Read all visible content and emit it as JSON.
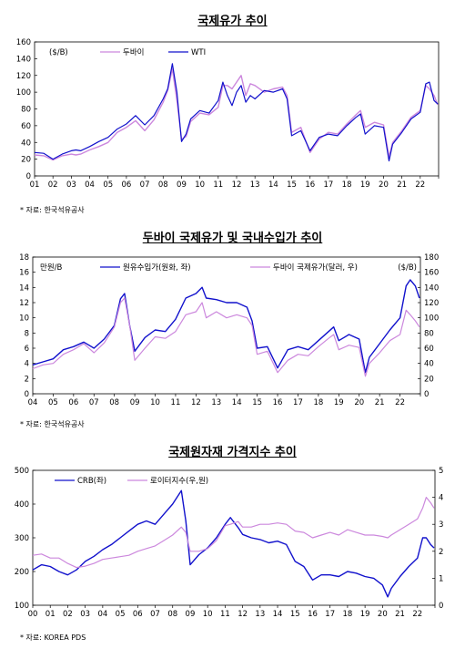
{
  "charts": [
    {
      "title": "국제유가 추이",
      "source": "* 자료: 한국석유공사"
    },
    {
      "title": "두바이 국제유가 및 국내수입가 추이",
      "source": "* 자료: 한국석유공사"
    },
    {
      "title": "국제원자재 가격지수 추이",
      "source": "* 자료: KOREA PDS"
    }
  ],
  "chart_data": [
    {
      "type": "line",
      "title": "국제유가 추이",
      "unit_label": "($/B)",
      "x_tick_labels": [
        "01",
        "02",
        "03",
        "04",
        "05",
        "06",
        "07",
        "08",
        "09",
        "10",
        "11",
        "12",
        "13",
        "14",
        "15",
        "16",
        "17",
        "18",
        "19",
        "20",
        "21",
        "22"
      ],
      "x_range": [
        2001.0,
        2023.0
      ],
      "ylim": [
        0,
        160
      ],
      "y_ticks": [
        0,
        20,
        40,
        60,
        80,
        100,
        120,
        140,
        160
      ],
      "legend_position": "top-left",
      "grid": false,
      "x": [
        2001.0,
        2001.5,
        2002.0,
        2002.5,
        2003.0,
        2003.25,
        2003.5,
        2004.0,
        2004.5,
        2005.0,
        2005.5,
        2006.0,
        2006.5,
        2007.0,
        2007.5,
        2008.0,
        2008.25,
        2008.5,
        2008.75,
        2009.0,
        2009.25,
        2009.5,
        2010.0,
        2010.5,
        2011.0,
        2011.25,
        2011.5,
        2011.75,
        2012.0,
        2012.25,
        2012.5,
        2012.75,
        2013.0,
        2013.5,
        2014.0,
        2014.5,
        2014.75,
        2015.0,
        2015.5,
        2016.0,
        2016.5,
        2017.0,
        2017.5,
        2018.0,
        2018.5,
        2018.75,
        2019.0,
        2019.5,
        2020.0,
        2020.3,
        2020.5,
        2021.0,
        2021.5,
        2022.0,
        2022.3,
        2022.5,
        2022.75,
        2022.95
      ],
      "series": [
        {
          "name": "두바이",
          "color": "#cc88dd",
          "values": [
            25,
            24,
            19,
            24,
            26,
            25,
            26,
            31,
            35,
            40,
            52,
            58,
            66,
            54,
            67,
            88,
            102,
            128,
            90,
            44,
            47,
            65,
            75,
            73,
            82,
            108,
            108,
            104,
            112,
            120,
            96,
            110,
            108,
            100,
            104,
            106,
            96,
            52,
            58,
            28,
            44,
            52,
            50,
            62,
            73,
            78,
            58,
            64,
            61,
            23,
            40,
            54,
            70,
            78,
            108,
            104,
            96,
            85
          ],
          "annotations": []
        },
        {
          "name": "WTI",
          "color": "#1111cc",
          "values": [
            28,
            27,
            20,
            26,
            30,
            31,
            30,
            35,
            41,
            46,
            56,
            62,
            72,
            61,
            72,
            92,
            104,
            134,
            100,
            41,
            50,
            68,
            78,
            75,
            90,
            112,
            96,
            84,
            100,
            108,
            88,
            96,
            92,
            102,
            100,
            104,
            92,
            48,
            54,
            30,
            46,
            50,
            48,
            60,
            70,
            74,
            50,
            60,
            58,
            18,
            38,
            52,
            68,
            76,
            110,
            112,
            90,
            86
          ]
        }
      ]
    },
    {
      "type": "line",
      "title": "두바이 국제유가 및 국내수입가 추이",
      "left_unit_label": "만원/B",
      "right_unit_label": "($/B)",
      "x_tick_labels": [
        "04",
        "05",
        "06",
        "07",
        "08",
        "09",
        "10",
        "11",
        "12",
        "13",
        "14",
        "15",
        "16",
        "17",
        "18",
        "19",
        "20",
        "21",
        "22"
      ],
      "x_range": [
        2004.0,
        2023.0
      ],
      "ylim_left": [
        0,
        18
      ],
      "ylim_right": [
        0,
        180
      ],
      "y_ticks_left": [
        0,
        2,
        4,
        6,
        8,
        10,
        12,
        14,
        16,
        18
      ],
      "y_ticks_right": [
        0,
        20,
        40,
        60,
        80,
        100,
        120,
        140,
        160,
        180
      ],
      "legend_position": "top",
      "grid": false,
      "x": [
        2004.0,
        2004.5,
        2005.0,
        2005.5,
        2006.0,
        2006.5,
        2007.0,
        2007.5,
        2008.0,
        2008.3,
        2008.5,
        2008.75,
        2009.0,
        2009.5,
        2010.0,
        2010.5,
        2011.0,
        2011.5,
        2012.0,
        2012.3,
        2012.5,
        2013.0,
        2013.5,
        2014.0,
        2014.5,
        2014.75,
        2015.0,
        2015.5,
        2016.0,
        2016.5,
        2017.0,
        2017.5,
        2018.0,
        2018.5,
        2018.75,
        2019.0,
        2019.5,
        2020.0,
        2020.3,
        2020.5,
        2021.0,
        2021.5,
        2022.0,
        2022.3,
        2022.5,
        2022.75,
        2022.95
      ],
      "series": [
        {
          "name": "원유수입가(원화, 좌)",
          "color": "#1111cc",
          "axis": "left",
          "values": [
            3.8,
            4.2,
            4.6,
            5.8,
            6.2,
            6.8,
            6.0,
            7.2,
            9.0,
            12.5,
            13.2,
            9.0,
            5.6,
            7.4,
            8.4,
            8.2,
            9.8,
            12.6,
            13.2,
            14.0,
            12.6,
            12.4,
            12.0,
            12.0,
            11.4,
            9.6,
            6.0,
            6.2,
            3.4,
            5.8,
            6.2,
            5.8,
            7.0,
            8.2,
            8.8,
            7.0,
            7.8,
            7.2,
            2.8,
            4.8,
            6.6,
            8.4,
            10.0,
            14.2,
            15.0,
            14.2,
            12.6
          ]
        },
        {
          "name": "두바이 국제유가(달러, 우)",
          "color": "#cc88dd",
          "axis": "right",
          "values": [
            33,
            38,
            40,
            52,
            58,
            66,
            54,
            67,
            88,
            120,
            126,
            90,
            44,
            60,
            75,
            73,
            82,
            104,
            108,
            120,
            100,
            108,
            100,
            104,
            100,
            90,
            52,
            56,
            28,
            44,
            52,
            50,
            62,
            73,
            78,
            58,
            64,
            61,
            23,
            40,
            54,
            70,
            78,
            110,
            104,
            96,
            88
          ]
        }
      ]
    },
    {
      "type": "line",
      "title": "국제원자재 가격지수 추이",
      "x_tick_labels": [
        "00",
        "01",
        "02",
        "03",
        "04",
        "05",
        "06",
        "07",
        "08",
        "09",
        "10",
        "11",
        "12",
        "13",
        "14",
        "15",
        "16",
        "17",
        "18",
        "19",
        "20",
        "21",
        "22"
      ],
      "x_range": [
        2000.0,
        2023.0
      ],
      "ylim_left": [
        100,
        500
      ],
      "ylim_right": [
        0,
        5
      ],
      "y_ticks_left": [
        100,
        200,
        300,
        400,
        500
      ],
      "y_ticks_right": [
        0,
        1,
        2,
        3,
        4,
        5
      ],
      "legend_position": "top-left",
      "grid": false,
      "x": [
        2000.0,
        2000.5,
        2001.0,
        2001.5,
        2002.0,
        2002.5,
        2003.0,
        2003.5,
        2004.0,
        2004.5,
        2005.0,
        2005.5,
        2006.0,
        2006.5,
        2007.0,
        2007.5,
        2008.0,
        2008.5,
        2008.75,
        2009.0,
        2009.5,
        2010.0,
        2010.5,
        2011.0,
        2011.3,
        2011.75,
        2012.0,
        2012.5,
        2013.0,
        2013.5,
        2014.0,
        2014.5,
        2015.0,
        2015.5,
        2016.0,
        2016.5,
        2017.0,
        2017.5,
        2018.0,
        2018.5,
        2019.0,
        2019.5,
        2020.0,
        2020.3,
        2020.5,
        2021.0,
        2021.5,
        2022.0,
        2022.3,
        2022.5,
        2022.75,
        2022.95
      ],
      "series": [
        {
          "name": "CRB(좌)",
          "color": "#1111cc",
          "axis": "left",
          "values": [
            205,
            220,
            215,
            200,
            190,
            205,
            230,
            245,
            265,
            280,
            300,
            320,
            340,
            350,
            340,
            370,
            400,
            440,
            350,
            220,
            250,
            270,
            300,
            340,
            360,
            330,
            310,
            300,
            295,
            285,
            290,
            280,
            230,
            215,
            175,
            190,
            190,
            185,
            200,
            195,
            185,
            180,
            160,
            125,
            150,
            185,
            215,
            240,
            300,
            300,
            280,
            270
          ]
        },
        {
          "name": "로이터지수(우,원)",
          "color": "#cc88dd",
          "axis": "right",
          "values": [
            1.85,
            1.9,
            1.75,
            1.75,
            1.55,
            1.4,
            1.45,
            1.55,
            1.7,
            1.75,
            1.8,
            1.85,
            2.0,
            2.1,
            2.2,
            2.4,
            2.6,
            2.9,
            2.7,
            2.0,
            2.0,
            2.1,
            2.4,
            2.95,
            3.0,
            3.1,
            2.9,
            2.9,
            3.0,
            3.0,
            3.05,
            3.0,
            2.75,
            2.7,
            2.5,
            2.6,
            2.7,
            2.6,
            2.8,
            2.7,
            2.6,
            2.6,
            2.55,
            2.5,
            2.6,
            2.8,
            3.0,
            3.2,
            3.6,
            4.0,
            3.8,
            3.6
          ]
        }
      ]
    }
  ]
}
